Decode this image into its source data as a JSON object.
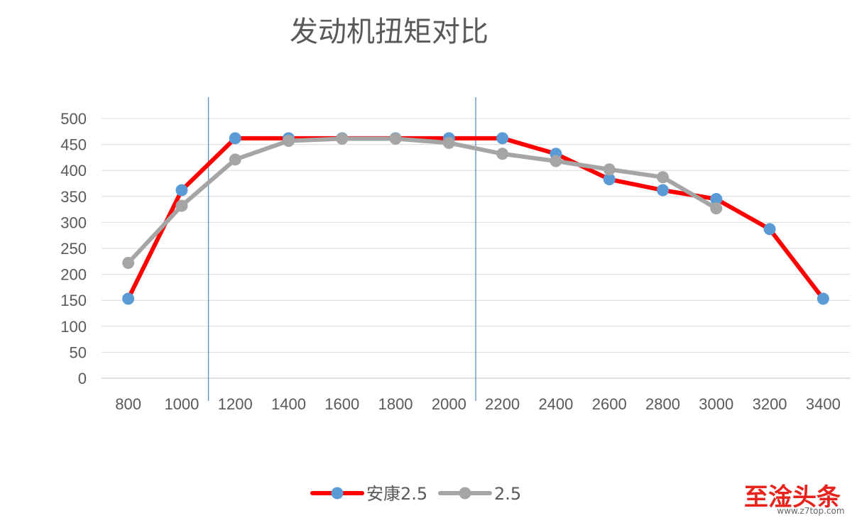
{
  "chart_data": {
    "type": "line",
    "title": "发动机扭矩对比",
    "xlabel": "",
    "ylabel": "",
    "x": [
      "800",
      "1000",
      "1200",
      "1400",
      "1600",
      "1800",
      "2000",
      "2200",
      "2400",
      "2600",
      "2800",
      "3000",
      "3200",
      "3400"
    ],
    "ylim": [
      0,
      500
    ],
    "yticks": [
      0,
      50,
      100,
      150,
      200,
      250,
      300,
      350,
      400,
      450,
      500
    ],
    "grid": true,
    "legend": "bottom-center",
    "vertical_markers_x": [
      "1200",
      "2200"
    ],
    "series": [
      {
        "name": "安康2.5",
        "line_color": "#ff0000",
        "marker_color": "#5b9bd5",
        "values": [
          153,
          362,
          462,
          462,
          462,
          462,
          462,
          462,
          432,
          383,
          362,
          345,
          287,
          153
        ]
      },
      {
        "name": "2.5",
        "line_color": "#a5a5a5",
        "marker_color": "#a5a5a5",
        "values": [
          222,
          332,
          421,
          457,
          461,
          461,
          453,
          432,
          418,
          402,
          387,
          327,
          null,
          null
        ]
      }
    ]
  },
  "watermark": {
    "logo_text": "至淦头条",
    "url": "www.z7top.com",
    "color": "#e8231b"
  }
}
